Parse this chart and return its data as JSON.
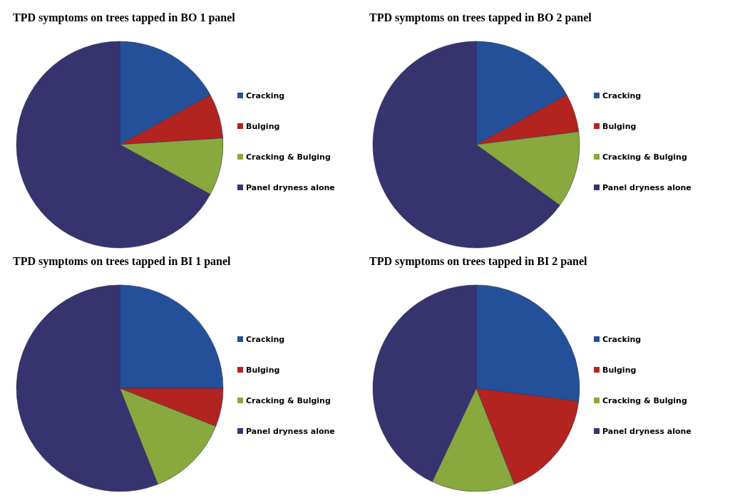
{
  "chart_data": [
    {
      "type": "pie",
      "title": "TPD symptoms on trees tapped in BO 1 panel",
      "categories": [
        "Cracking",
        "Bulging",
        "Cracking & Bulging",
        "Panel dryness alone"
      ],
      "values": [
        17,
        7,
        9,
        67
      ],
      "colors": [
        "#24509a",
        "#b3231f",
        "#89a83e",
        "#37336e"
      ],
      "legend": "right"
    },
    {
      "type": "pie",
      "title": "TPD symptoms on trees tapped in BO 2 panel",
      "categories": [
        "Cracking",
        "Bulging",
        "Cracking & Bulging",
        "Panel dryness alone"
      ],
      "values": [
        17,
        6,
        12,
        65
      ],
      "colors": [
        "#24509a",
        "#b3231f",
        "#89a83e",
        "#37336e"
      ],
      "legend": "right"
    },
    {
      "type": "pie",
      "title": "TPD symptoms on trees tapped in BI 1 panel",
      "categories": [
        "Cracking",
        "Bulging",
        "Cracking & Bulging",
        "Panel dryness alone"
      ],
      "values": [
        25,
        6,
        13,
        56
      ],
      "colors": [
        "#24509a",
        "#b3231f",
        "#89a83e",
        "#37336e"
      ],
      "legend": "right"
    },
    {
      "type": "pie",
      "title": "TPD symptoms on trees tapped in BI 2 panel",
      "categories": [
        "Cracking",
        "Bulging",
        "Cracking & Bulging",
        "Panel dryness alone"
      ],
      "values": [
        27,
        17,
        13,
        43
      ],
      "colors": [
        "#24509a",
        "#b3231f",
        "#89a83e",
        "#37336e"
      ],
      "legend": "right"
    }
  ]
}
